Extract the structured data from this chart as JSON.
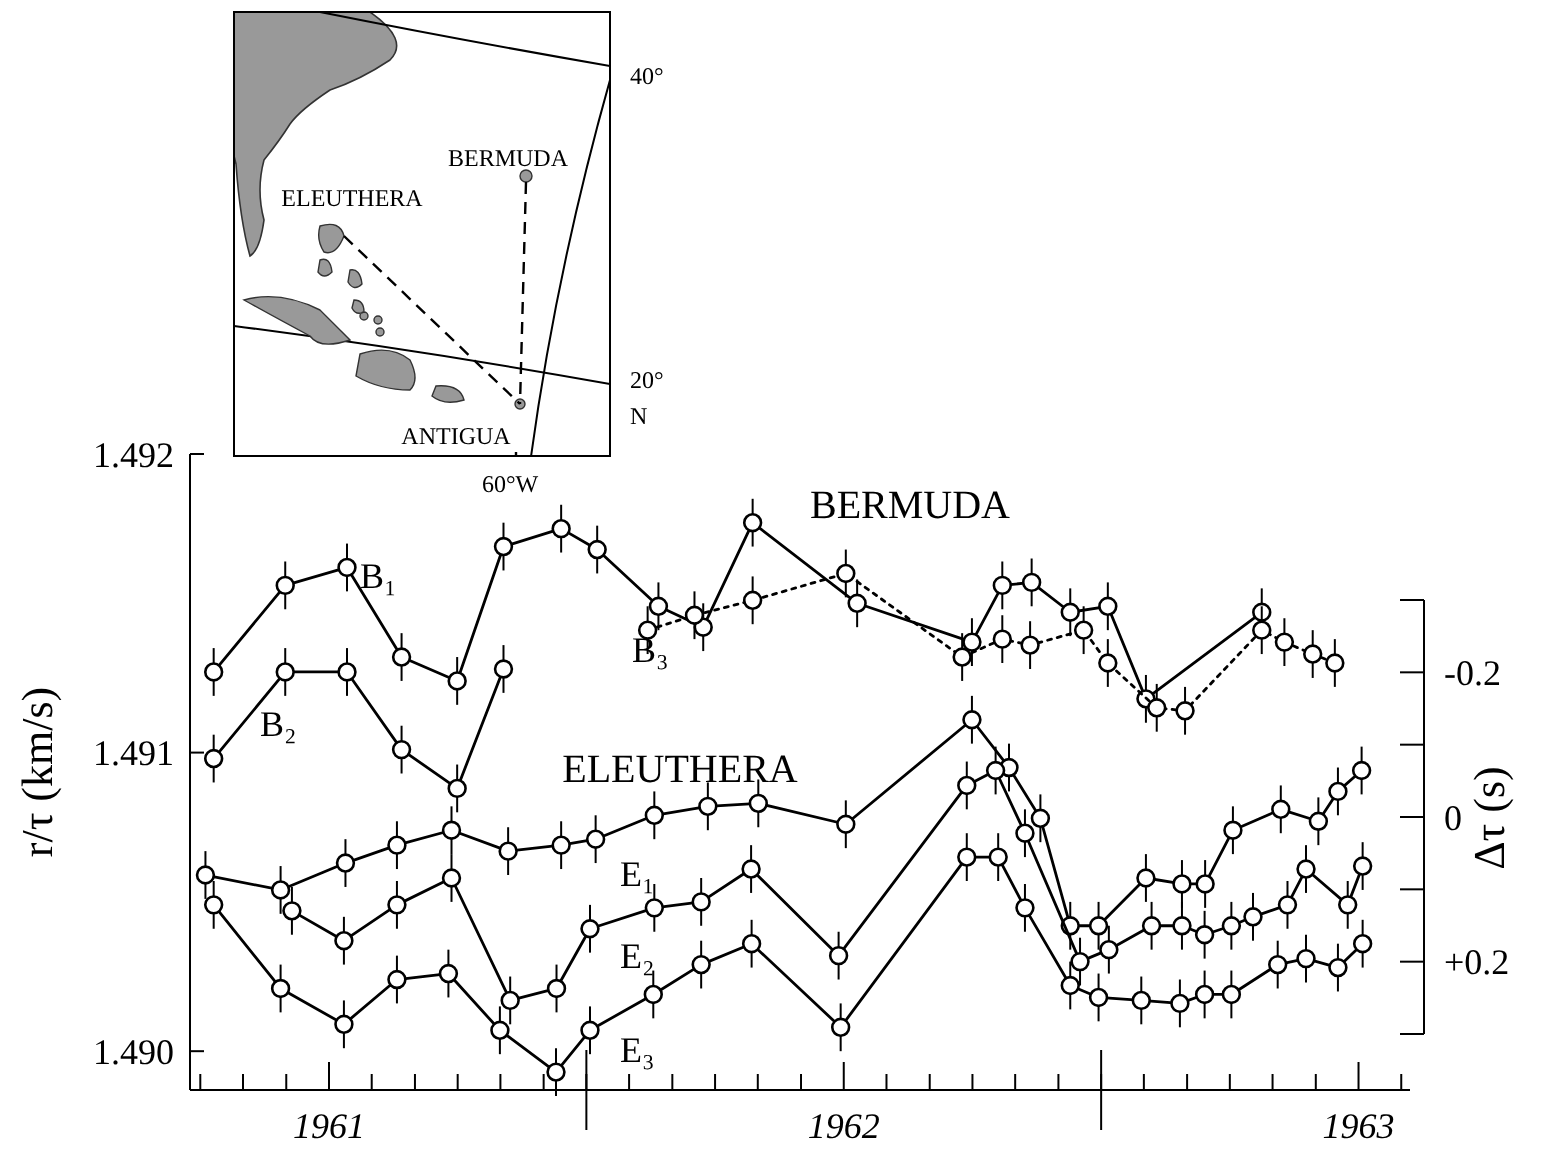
{
  "chart_data": {
    "type": "line",
    "ylabel": "r/τ (km/s)",
    "y2label": "Δτ (s)",
    "marker": "circle",
    "xlim": [
      1960.73,
      1963.1
    ],
    "xticks": [
      {
        "value": 1960.75,
        "label": null
      },
      {
        "value": 1960.833,
        "label": null
      },
      {
        "value": 1960.917,
        "label": null
      },
      1961,
      {
        "value": 1961.083,
        "label": null
      },
      {
        "value": 1961.167,
        "label": null
      },
      {
        "value": 1961.25,
        "label": null
      },
      {
        "value": 1961.333,
        "label": null
      },
      {
        "value": 1961.417,
        "label": null
      },
      {
        "value": 1961.5,
        "label": null
      },
      {
        "value": 1961.583,
        "label": null
      },
      {
        "value": 1961.667,
        "label": null
      },
      {
        "value": 1961.75,
        "label": null
      },
      {
        "value": 1961.833,
        "label": null
      },
      {
        "value": 1961.917,
        "label": null
      },
      1962,
      {
        "value": 1962.083,
        "label": null
      },
      {
        "value": 1962.167,
        "label": null
      },
      {
        "value": 1962.25,
        "label": null
      },
      {
        "value": 1962.333,
        "label": null
      },
      {
        "value": 1962.417,
        "label": null
      },
      {
        "value": 1962.5,
        "label": null
      },
      {
        "value": 1962.583,
        "label": null
      },
      {
        "value": 1962.667,
        "label": null
      },
      {
        "value": 1962.75,
        "label": null
      },
      {
        "value": 1962.833,
        "label": null
      },
      {
        "value": 1962.917,
        "label": null
      },
      1963,
      {
        "value": 1963.083,
        "label": null
      }
    ],
    "ylim": [
      1.48987,
      1.492
    ],
    "yticks": [
      {
        "value": 1.49,
        "label": "1.490"
      },
      1.491,
      1.492
    ],
    "y2lim": [
      0.3,
      -0.3
    ],
    "y2ticks": [
      {
        "value": -0.3,
        "label": null
      },
      {
        "value": -0.2,
        "label": "-0.2"
      },
      {
        "value": -0.1,
        "label": null
      },
      0,
      {
        "value": 0.1,
        "label": null
      },
      {
        "value": 0.2,
        "label": "+0.2"
      },
      {
        "value": 0.3,
        "label": null
      }
    ],
    "series": [
      {
        "color": "#000000",
        "line_style": "solid",
        "x": [
          1960.776,
          1960.915,
          1961.035,
          1961.141,
          1961.249,
          1961.339,
          1961.451,
          1961.521,
          1961.64,
          1961.727,
          1961.823,
          1962.026,
          1962.249,
          1962.308,
          1962.365,
          1962.44,
          1962.513,
          1962.587,
          1962.812
        ],
        "values": [
          1.49127,
          1.49156,
          1.49162,
          1.49132,
          1.49124,
          1.49169,
          1.49175,
          1.49168,
          1.49149,
          1.49142,
          1.49177,
          1.4915,
          1.49137,
          1.49156,
          1.49157,
          1.49147,
          1.49149,
          1.49118,
          1.49147
        ],
        "errors": [
          8e-05,
          8e-05,
          8e-05,
          8e-05,
          8e-05,
          8e-05,
          8e-05,
          8e-05,
          8e-05,
          8e-05,
          8e-05,
          8e-05,
          8e-05,
          8e-05,
          8e-05,
          8e-05,
          8e-05,
          8e-05,
          8e-05
        ]
      },
      {
        "color": "#000000",
        "line_style": "dotted",
        "x": [
          1961.619,
          1961.71,
          1961.823,
          1962.004,
          1962.23,
          1962.308,
          1962.362,
          1962.466,
          1962.513,
          1962.608,
          1962.663,
          1962.812,
          1962.856,
          1962.911,
          1962.954
        ],
        "values": [
          1.49141,
          1.49146,
          1.49151,
          1.4916,
          1.49132,
          1.49138,
          1.49136,
          1.49141,
          1.4913,
          1.49115,
          1.49114,
          1.49141,
          1.49137,
          1.49133,
          1.4913
        ],
        "errors": [
          8e-05,
          8e-05,
          8e-05,
          8e-05,
          8e-05,
          8e-05,
          8e-05,
          8e-05,
          8e-05,
          8e-05,
          8e-05,
          8e-05,
          8e-05,
          8e-05,
          8e-05
        ]
      },
      {
        "color": "#000000",
        "line_style": "solid",
        "x": [
          1960.776,
          1960.915,
          1961.035,
          1961.141,
          1961.249,
          1961.339
        ],
        "values": [
          1.49098,
          1.49127,
          1.49127,
          1.49101,
          1.49088,
          1.49128
        ],
        "errors": [
          8e-05,
          8e-05,
          8e-05,
          8e-05,
          8e-05,
          8e-05
        ]
      },
      {
        "color": "#000000",
        "line_style": "solid",
        "x": [
          1960.76,
          1960.906,
          1961.032,
          1961.132,
          1961.238,
          1961.348,
          1961.451,
          1961.518,
          1961.632,
          1961.736,
          1961.834,
          1962.004,
          1962.249,
          1962.321,
          1962.382,
          1962.44,
          1962.495,
          1962.587,
          1962.657,
          1962.702,
          1962.756,
          1962.849,
          1962.922,
          1962.96,
          1963.006
        ],
        "values": [
          1.49059,
          1.49054,
          1.49063,
          1.49069,
          1.49074,
          1.49067,
          1.49069,
          1.49071,
          1.49079,
          1.49082,
          1.49083,
          1.49076,
          1.49111,
          1.49095,
          1.49078,
          1.49042,
          1.49042,
          1.49058,
          1.49056,
          1.49056,
          1.49074,
          1.49081,
          1.49077,
          1.49087,
          1.49094
        ],
        "errors": [
          8e-05,
          8e-05,
          8e-05,
          8e-05,
          8e-05,
          8e-05,
          8e-05,
          8e-05,
          8e-05,
          8e-05,
          8e-05,
          8e-05,
          8e-05,
          8e-05,
          8e-05,
          8e-05,
          8e-05,
          8e-05,
          8e-05,
          8e-05,
          8e-05,
          8e-05,
          8e-05,
          8e-05,
          8e-05
        ]
      },
      {
        "color": "#000000",
        "line_style": "solid",
        "x": [
          1960.928,
          1961.029,
          1961.132,
          1961.238,
          1961.352,
          1961.442,
          1961.507,
          1961.632,
          1961.723,
          1961.82,
          1961.99,
          1962.239,
          1962.295,
          1962.352,
          1962.459,
          1962.515,
          1962.598,
          1962.657,
          1962.701,
          1962.753,
          1962.795,
          1962.862,
          1962.898,
          1962.979,
          1963.008
        ],
        "values": [
          1.49047,
          1.49037,
          1.49049,
          1.49058,
          1.49017,
          1.49021,
          1.49041,
          1.49048,
          1.4905,
          1.49061,
          1.49032,
          1.49089,
          1.49094,
          1.49073,
          1.4903,
          1.49034,
          1.49042,
          1.49042,
          1.49039,
          1.49042,
          1.49045,
          1.49049,
          1.49061,
          1.49049,
          1.49062
        ],
        "errors": [
          8e-05,
          8e-05,
          8e-05,
          8e-05,
          8e-05,
          8e-05,
          8e-05,
          8e-05,
          8e-05,
          8e-05,
          8e-05,
          8e-05,
          8e-05,
          8e-05,
          8e-05,
          8e-05,
          8e-05,
          8e-05,
          8e-05,
          8e-05,
          8e-05,
          8e-05,
          8e-05,
          8e-05,
          8e-05
        ]
      },
      {
        "color": "#000000",
        "line_style": "solid",
        "x": [
          1960.776,
          1960.906,
          1961.029,
          1961.132,
          1961.232,
          1961.332,
          1961.441,
          1961.507,
          1961.63,
          1961.723,
          1961.821,
          1961.994,
          1962.239,
          1962.3,
          1962.352,
          1962.44,
          1962.495,
          1962.578,
          1962.653,
          1962.701,
          1962.753,
          1962.843,
          1962.898,
          1962.96,
          1963.008
        ],
        "values": [
          1.49049,
          1.49021,
          1.49009,
          1.49024,
          1.49026,
          1.49007,
          1.48993,
          1.49007,
          1.49019,
          1.49029,
          1.49036,
          1.49008,
          1.49065,
          1.49065,
          1.49048,
          1.49022,
          1.49018,
          1.49017,
          1.49016,
          1.49019,
          1.49019,
          1.49029,
          1.49031,
          1.49028,
          1.49036
        ],
        "errors": [
          8e-05,
          8e-05,
          8e-05,
          8e-05,
          8e-05,
          8e-05,
          8e-05,
          8e-05,
          8e-05,
          8e-05,
          8e-05,
          8e-05,
          8e-05,
          8e-05,
          8e-05,
          8e-05,
          8e-05,
          8e-05,
          8e-05,
          8e-05,
          8e-05,
          8e-05,
          8e-05,
          8e-05,
          8e-05
        ]
      }
    ],
    "annotations": [
      "BERMUDA",
      "ELEUTHERA",
      "B₁",
      "B₂",
      "B₃",
      "E₁",
      "E₂",
      "E₃",
      "BERMUDA",
      "ELEUTHERA",
      "ANTIGUA",
      "40°",
      "20°",
      "N",
      "60°W"
    ]
  }
}
